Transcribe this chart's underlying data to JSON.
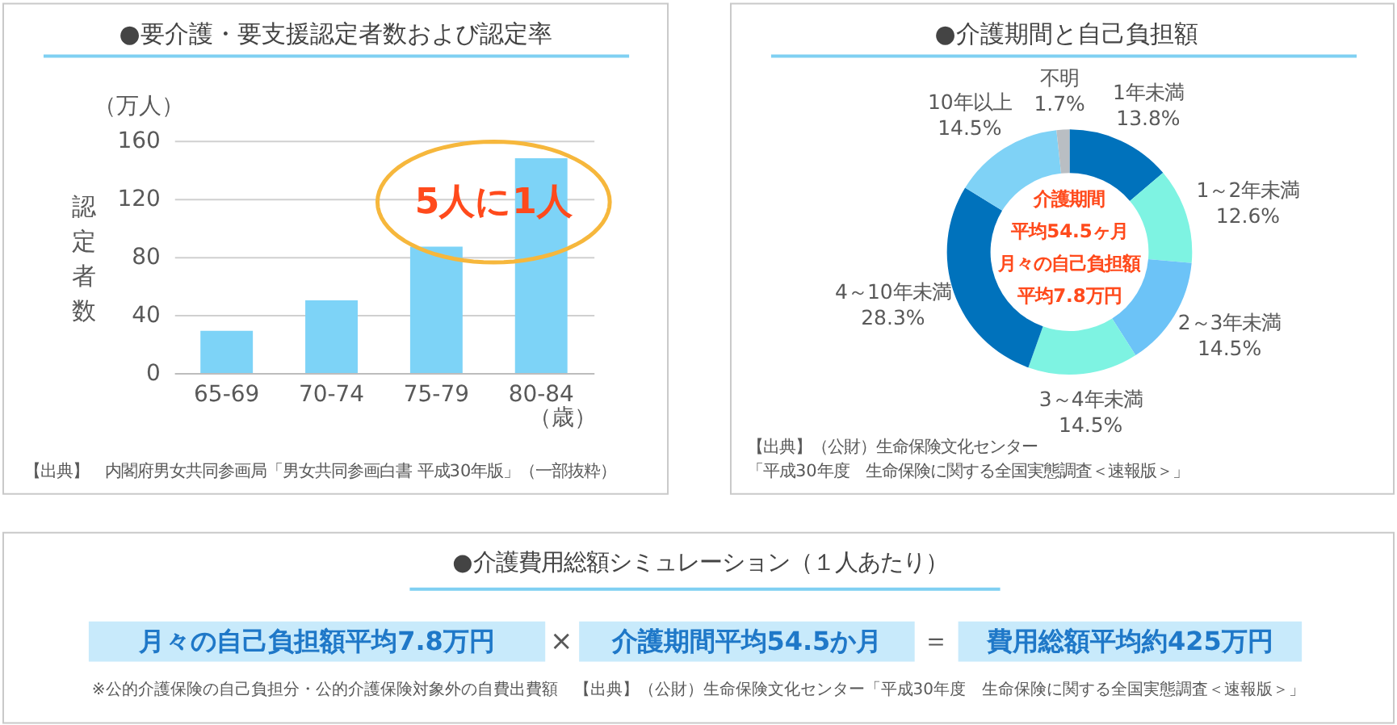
{
  "chart_data": [
    {
      "type": "bar",
      "title": "●要介護・要支援認定者数および認定率",
      "categories": [
        "65-69",
        "70-74",
        "75-79",
        "80-84"
      ],
      "values": [
        29,
        50,
        87,
        148
      ],
      "color": "#7dd3f7",
      "ylim": [
        0,
        160
      ],
      "yticks": [
        0,
        40,
        80,
        120,
        160
      ],
      "grid": "y",
      "ylabel": "認定者数",
      "xlabel": "（歳）",
      "annotations": [
        "（万人）",
        "5人に1人",
        "【出典】　内閣府男女共同参画局「男女共同参画白書 平成30年版」（一部抜粋）"
      ]
    },
    {
      "type": "donut",
      "title": "●介護期間と自己負担額",
      "categories": [
        "1年未満",
        "1～2年未満",
        "2～3年未満",
        "3～4年未満",
        "4～10年未満",
        "10年以上",
        "不明"
      ],
      "values": [
        13.8,
        12.6,
        14.5,
        14.5,
        28.3,
        14.5,
        1.7
      ],
      "colors": [
        "#0072bc",
        "#7ef3e2",
        "#6cc3f7",
        "#7ef3e2",
        "#0072bc",
        "#7fd2f6",
        "#b9bec3"
      ],
      "value_labels": [
        "13.8%",
        "12.6%",
        "14.5%",
        "14.5%",
        "28.3%",
        "14.5%",
        "1.7%"
      ],
      "annotations": [
        "介護期間",
        "平均54.5ヶ月",
        "月々の自己負担額",
        "平均7.8万円",
        "【出典】（公財）生命保険文化センター",
        "「平成30年度　生命保険に関する全国実態調査＜速報版＞」"
      ]
    },
    {
      "type": "other",
      "title": "●介護費用総額シミュレーション（１人あたり）",
      "annotations": [
        "月々の自己負担額平均7.8万円",
        "×",
        "介護期間平均54.5か月",
        "＝",
        "費用総額平均約425万円",
        "※公的介護保険の自己負担分・公的介護保険対象外の自費出費額　【出典】（公財）生命保険文化センター「平成30年度　生命保険に関する全国実態調査＜速報版＞」"
      ]
    }
  ]
}
